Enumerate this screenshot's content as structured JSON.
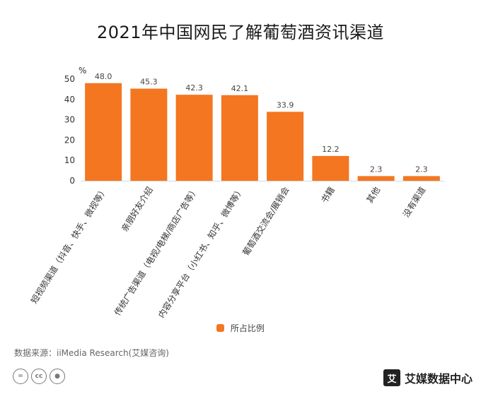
{
  "chart_data": {
    "type": "bar",
    "title": "2021年中国网民了解葡萄酒资讯渠道",
    "ylabel": "%",
    "ylim": [
      0,
      50
    ],
    "yticks": [
      0,
      10,
      20,
      30,
      40,
      50
    ],
    "categories": [
      "短视频渠道（抖音、快手、微视等）",
      "亲朋好友介绍",
      "传统广告渠道（电视/电梯/商店广告等）",
      "内容分享平台（小红书、知乎、微博等）",
      "葡萄酒交流会/展销会",
      "书籍",
      "其他",
      "没有渠道"
    ],
    "series": [
      {
        "name": "所占比例",
        "values": [
          48.0,
          45.3,
          42.3,
          42.1,
          33.9,
          12.2,
          2.3,
          2.3
        ],
        "labels": [
          "48.0",
          "45.3",
          "42.3",
          "42.1",
          "33.9",
          "12.2",
          "2.3",
          "2.3"
        ]
      }
    ],
    "legend": "bottom-center",
    "grid": false,
    "bar_color": "#F47621"
  },
  "source": "数据来源：iiMedia Research(艾媒咨询)",
  "watermark": {
    "logo_glyph": "艾",
    "text": "艾媒数据中心"
  },
  "license_icons": [
    "equals-icon",
    "cc-icon",
    "person-icon"
  ]
}
